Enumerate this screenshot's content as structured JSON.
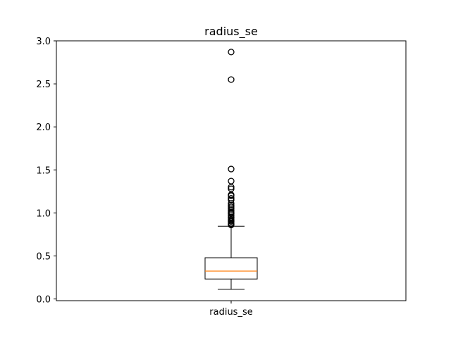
{
  "chart_data": {
    "type": "box",
    "title": "radius_se",
    "xlabel": "",
    "ylabel": "",
    "categories": [
      "radius_se"
    ],
    "ylim": [
      -0.02,
      3.0
    ],
    "yticks": [
      "0.0",
      "0.5",
      "1.0",
      "1.5",
      "2.0",
      "2.5",
      "3.0"
    ],
    "grid": false,
    "box": {
      "whisker_low": 0.112,
      "q1": 0.232,
      "median": 0.324,
      "q3": 0.479,
      "whisker_high": 0.845
    },
    "outliers": [
      0.86,
      0.87,
      0.88,
      0.9,
      0.91,
      0.92,
      0.94,
      0.95,
      0.97,
      0.99,
      1.0,
      1.01,
      1.03,
      1.05,
      1.07,
      1.09,
      1.11,
      1.15,
      1.17,
      1.2,
      1.21,
      1.28,
      1.3,
      1.37,
      1.51,
      2.55,
      2.87
    ],
    "colors": {
      "box": "#000000",
      "median": "#ff7f0e",
      "outlier_edge": "#000000"
    }
  }
}
